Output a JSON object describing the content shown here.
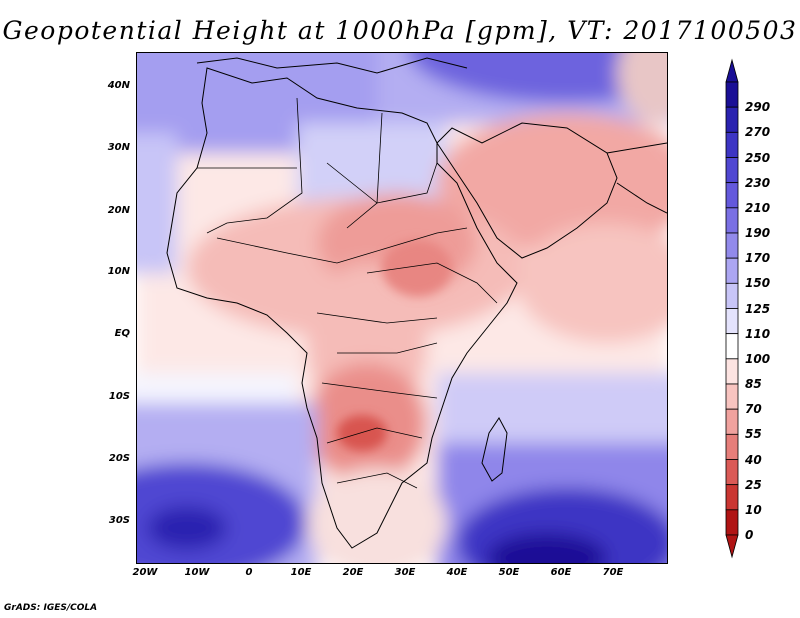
{
  "title": "Geopotential Height at 1000hPa [gpm], VT: 2017100503",
  "credit": "GrADS: IGES/COLA",
  "axes": {
    "lat_ticks": [
      "40N",
      "30N",
      "20N",
      "10N",
      "EQ",
      "10S",
      "20S",
      "30S"
    ],
    "lon_ticks": [
      "20W",
      "10W",
      "0",
      "10E",
      "20E",
      "30E",
      "40E",
      "50E",
      "60E",
      "70E"
    ]
  },
  "colorbar": {
    "labels": [
      "290",
      "270",
      "250",
      "230",
      "210",
      "190",
      "170",
      "150",
      "125",
      "110",
      "100",
      "85",
      "70",
      "55",
      "40",
      "25",
      "10",
      "0"
    ],
    "colors": [
      "#1a0f96",
      "#2a22b0",
      "#3d35c4",
      "#5047d2",
      "#6459dc",
      "#7a70e4",
      "#928aeb",
      "#aca6f2",
      "#c8c5f7",
      "#e4e3fc",
      "#ffffff",
      "#fde4e2",
      "#f8c4c0",
      "#f0a29e",
      "#e67e7a",
      "#da5a56",
      "#ca3632",
      "#b01414"
    ]
  },
  "chart_data": {
    "type": "heatmap",
    "title": "Geopotential Height at 1000hPa [gpm], VT: 2017100503",
    "variable": "Geopotential Height at 1000hPa",
    "units": "gpm",
    "valid_time": "2017100503",
    "region": "Africa, Arabian Peninsula and western Indian Ocean",
    "lon_range": [
      -22,
      80
    ],
    "lat_range": [
      -37,
      45
    ],
    "levels": [
      0,
      10,
      25,
      40,
      55,
      70,
      85,
      100,
      110,
      125,
      150,
      170,
      190,
      210,
      230,
      250,
      270,
      290
    ],
    "fields": {
      "highs": [
        {
          "name": "South Atlantic high",
          "lon": -12,
          "lat": -32,
          "value": 200
        },
        {
          "name": "South Indian Ocean high",
          "lon": 58,
          "lat": -35,
          "value": 240
        },
        {
          "name": "Mediterranean / Anatolia",
          "lon": 35,
          "lat": 42,
          "value": 185
        },
        {
          "name": "Caspian / Central Asia",
          "lon": 63,
          "lat": 44,
          "value": 240
        }
      ],
      "lows": [
        {
          "name": "Angola-Zambia heat low",
          "lon": 22,
          "lat": -17,
          "value": 45
        },
        {
          "name": "Sudan-Ethiopia low",
          "lon": 32,
          "lat": 12,
          "value": 80
        },
        {
          "name": "Sahel belt",
          "lon": 0,
          "lat": 15,
          "value": 90
        },
        {
          "name": "Arabia",
          "lon": 46,
          "lat": 26,
          "value": 85
        },
        {
          "name": "Persian Gulf",
          "lon": 52,
          "lat": 28,
          "value": 85
        },
        {
          "name": "NW India / Pakistan",
          "lon": 75,
          "lat": 30,
          "value": 80
        }
      ],
      "background_value": 110
    }
  }
}
